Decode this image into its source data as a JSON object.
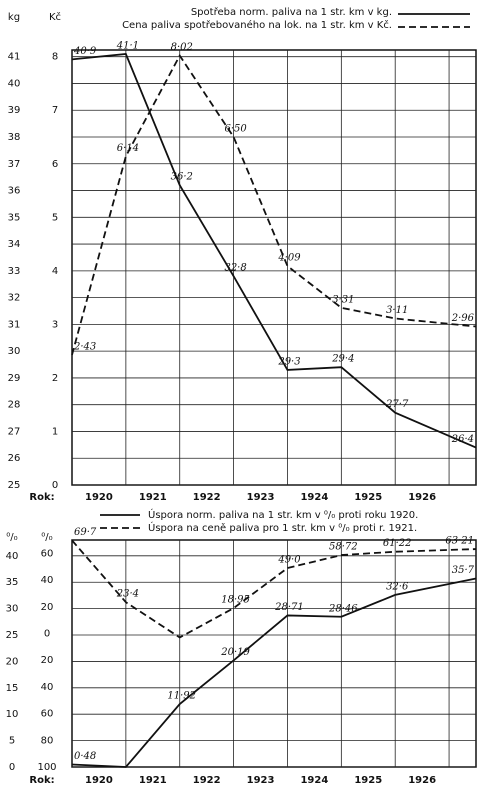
{
  "chart_data": [
    {
      "type": "line",
      "legend": "top",
      "ylabel": "kg",
      "y2label": "Kč",
      "xlabel": "Rok:",
      "xlim": [
        1919.5,
        1927
      ],
      "xticks": [
        1920,
        1921,
        1922,
        1923,
        1924,
        1925,
        1926
      ],
      "ylim": [
        25,
        41.25
      ],
      "yticks": [
        25,
        26,
        27,
        28,
        29,
        30,
        31,
        32,
        33,
        34,
        35,
        36,
        37,
        38,
        39,
        40,
        41
      ],
      "y2lim": [
        0,
        8.125
      ],
      "y2ticks": [
        0,
        1,
        2,
        3,
        4,
        5,
        6,
        7,
        8
      ],
      "grid": true,
      "series": [
        {
          "name": "Spotřeba norm. paliva na 1 str. km v kg.",
          "color": "#111111",
          "linestyle": "solid",
          "x": [
            1919.5,
            1920.5,
            1921.5,
            1922.5,
            1923.5,
            1924.5,
            1925.5,
            1927
          ],
          "values": [
            40.9,
            41.1,
            36.2,
            32.8,
            29.3,
            29.4,
            27.7,
            26.4
          ],
          "value_labels": [
            "40·9",
            "41·1",
            "36·2",
            "32·8",
            "29·3",
            "29·4",
            "27·7",
            "26·4"
          ]
        },
        {
          "name": "Cena paliva spotřebovaného na lok. na 1 str. km v Kč.",
          "color": "#111111",
          "linestyle": "dashed",
          "axis": "y2",
          "x": [
            1919.5,
            1920.5,
            1921.5,
            1922.5,
            1923.5,
            1924.5,
            1925.5,
            1927
          ],
          "values": [
            2.43,
            6.14,
            8.02,
            6.5,
            4.09,
            3.31,
            3.11,
            2.96
          ],
          "value_labels": [
            "2·43",
            "6·14",
            "8·02",
            "6·50",
            "4·09",
            "3·31",
            "3·11",
            "2·96"
          ]
        }
      ]
    },
    {
      "type": "line",
      "legend": "top",
      "ylabel": "⁰/₀",
      "y2label": "⁰/₀",
      "xlabel": "Rok:",
      "xlim": [
        1919.5,
        1927
      ],
      "xticks": [
        1920,
        1921,
        1922,
        1923,
        1924,
        1925,
        1926
      ],
      "ylim": [
        0,
        43
      ],
      "yticks": [
        0,
        5,
        10,
        15,
        20,
        25,
        30,
        35,
        40
      ],
      "y2lim": [
        -100,
        70
      ],
      "y2ticks": [
        {
          "value": -100,
          "label": "100"
        },
        {
          "value": -80,
          "label": "80"
        },
        {
          "value": -60,
          "label": "60"
        },
        {
          "value": -40,
          "label": "40"
        },
        {
          "value": -20,
          "label": "20"
        },
        0,
        20,
        40,
        60
      ],
      "grid": true,
      "series": [
        {
          "name": "Úspora norm. paliva na 1 str. km v ⁰/₀ proti roku 1920.",
          "color": "#111111",
          "linestyle": "solid",
          "x": [
            1919.5,
            1920.5,
            1921.5,
            1922.5,
            1923.5,
            1924.5,
            1925.5,
            1927
          ],
          "values": [
            0.48,
            0,
            11.92,
            20.19,
            28.71,
            28.46,
            32.6,
            35.7
          ],
          "value_labels": [
            "0·48",
            null,
            "11·92",
            "20·19",
            "28·71",
            "28·46",
            "32·6",
            "35·7"
          ]
        },
        {
          "name": "Úspora na ceně paliva pro 1 str. km v ⁰/₀ proti r. 1921.",
          "color": "#111111",
          "linestyle": "dashed",
          "axis": "y2",
          "x": [
            1919.5,
            1920.5,
            1921.5,
            1922.5,
            1923.5,
            1924.5,
            1925.5,
            1927
          ],
          "values": [
            69.7,
            23.4,
            -3,
            18.95,
            49.0,
            58.72,
            61.22,
            63.21
          ],
          "value_labels": [
            "69·7",
            "23·4",
            null,
            "18·95",
            "49·0",
            "58·72",
            "61·22",
            "63·21"
          ]
        }
      ]
    }
  ]
}
